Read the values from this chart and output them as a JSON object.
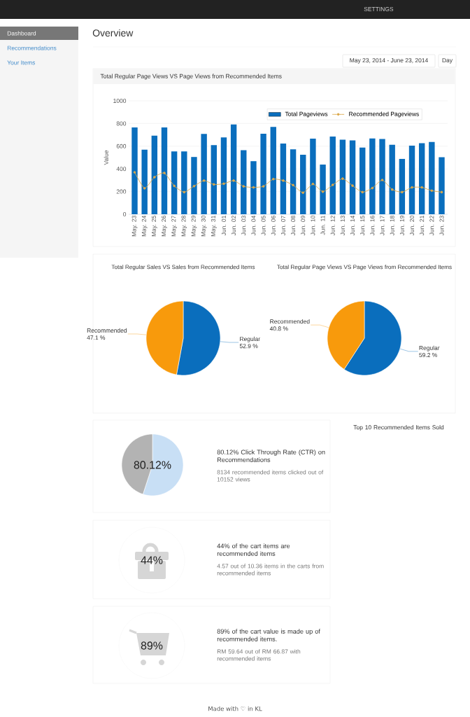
{
  "chart_data": [
    {
      "type": "bar",
      "title": "Total Regular Page Views VS Page Views from Recommended Items",
      "ylabel": "Value",
      "categories": [
        "May. 23",
        "May. 24",
        "May. 25",
        "May. 26",
        "May. 27",
        "May. 28",
        "May. 29",
        "May. 30",
        "May. 31",
        "Jun. 01",
        "Jun. 02",
        "Jun. 03",
        "Jun. 04",
        "Jun. 05",
        "Jun. 06",
        "Jun. 07",
        "Jun. 08",
        "Jun. 09",
        "Jun. 10",
        "Jun. 11",
        "Jun. 12",
        "Jun. 13",
        "Jun. 14",
        "Jun. 15",
        "Jun. 16",
        "Jun. 17",
        "Jun. 18",
        "Jun. 19",
        "Jun. 20",
        "Jun. 21",
        "Jun. 22",
        "Jun. 23"
      ],
      "series": [
        {
          "name": "Total Pageviews",
          "type": "bar",
          "color": "#0a6ebd",
          "values": [
            766,
            569,
            693,
            766,
            554,
            554,
            505,
            708,
            610,
            678,
            791,
            565,
            468,
            710,
            770,
            623,
            573,
            524,
            667,
            438,
            685,
            657,
            652,
            588,
            669,
            663,
            612,
            488,
            605,
            627,
            637,
            503
          ]
        },
        {
          "name": "Recommended Pageviews",
          "type": "line",
          "color": "#dba84a",
          "values": [
            370,
            229,
            327,
            364,
            250,
            195,
            248,
            297,
            263,
            269,
            297,
            246,
            237,
            246,
            310,
            297,
            257,
            190,
            267,
            199,
            259,
            314,
            252,
            195,
            231,
            302,
            218,
            195,
            237,
            237,
            208,
            195
          ]
        }
      ],
      "ylim": [
        0,
        1000
      ],
      "yticks": [
        0,
        200,
        400,
        600,
        800,
        1000
      ],
      "grid": "y",
      "legend": "top right",
      "marker": "circle",
      "annotations": [
        "SETTINGS",
        "Dashboard",
        "Recommendations",
        "Your Items",
        "Overview",
        "May 23, 2014 - June 23, 2014",
        "Day",
        "Made with ♡ in KL"
      ]
    },
    {
      "type": "pie",
      "title": "Total Regular Sales VS Sales from Recommended Items",
      "categories": [
        "Regular",
        "Recommended"
      ],
      "values": [
        52.9,
        47.1
      ],
      "colors": [
        "#0a6ebd",
        "#f89a0c"
      ],
      "value_labels": [
        "52.9 %",
        "47.1 %"
      ]
    },
    {
      "type": "pie",
      "title": "Total Regular Page Views VS Page Views from Recommended Items",
      "categories": [
        "Regular",
        "Recommended"
      ],
      "values": [
        59.2,
        40.8
      ],
      "colors": [
        "#0a6ebd",
        "#f89a0c"
      ],
      "value_labels": [
        "59.2 %",
        "40.8 %"
      ]
    },
    {
      "type": "pie",
      "categories": [
        null,
        null
      ],
      "values": [
        55,
        45
      ],
      "colors": [
        "#c8dff5",
        "#b3b3b3"
      ],
      "annotations": [
        "80.12%",
        "80.12% Click Through Rate (CTR) on Recommendations",
        "8134 recommended items clicked out of 10152 views"
      ]
    },
    {
      "type": "other",
      "annotations": [
        "44%",
        "44% of the cart items are recommended items",
        "4.57 out of 10.36 items in the carts from recommended items"
      ]
    },
    {
      "type": "other",
      "annotations": [
        "89%",
        "89% of the cart value is made up of recommended items.",
        "RM 59.64 out of RM 66.87 with recommended items"
      ]
    },
    {
      "type": "other",
      "title": "Top 10 Recommended Items Sold"
    }
  ]
}
